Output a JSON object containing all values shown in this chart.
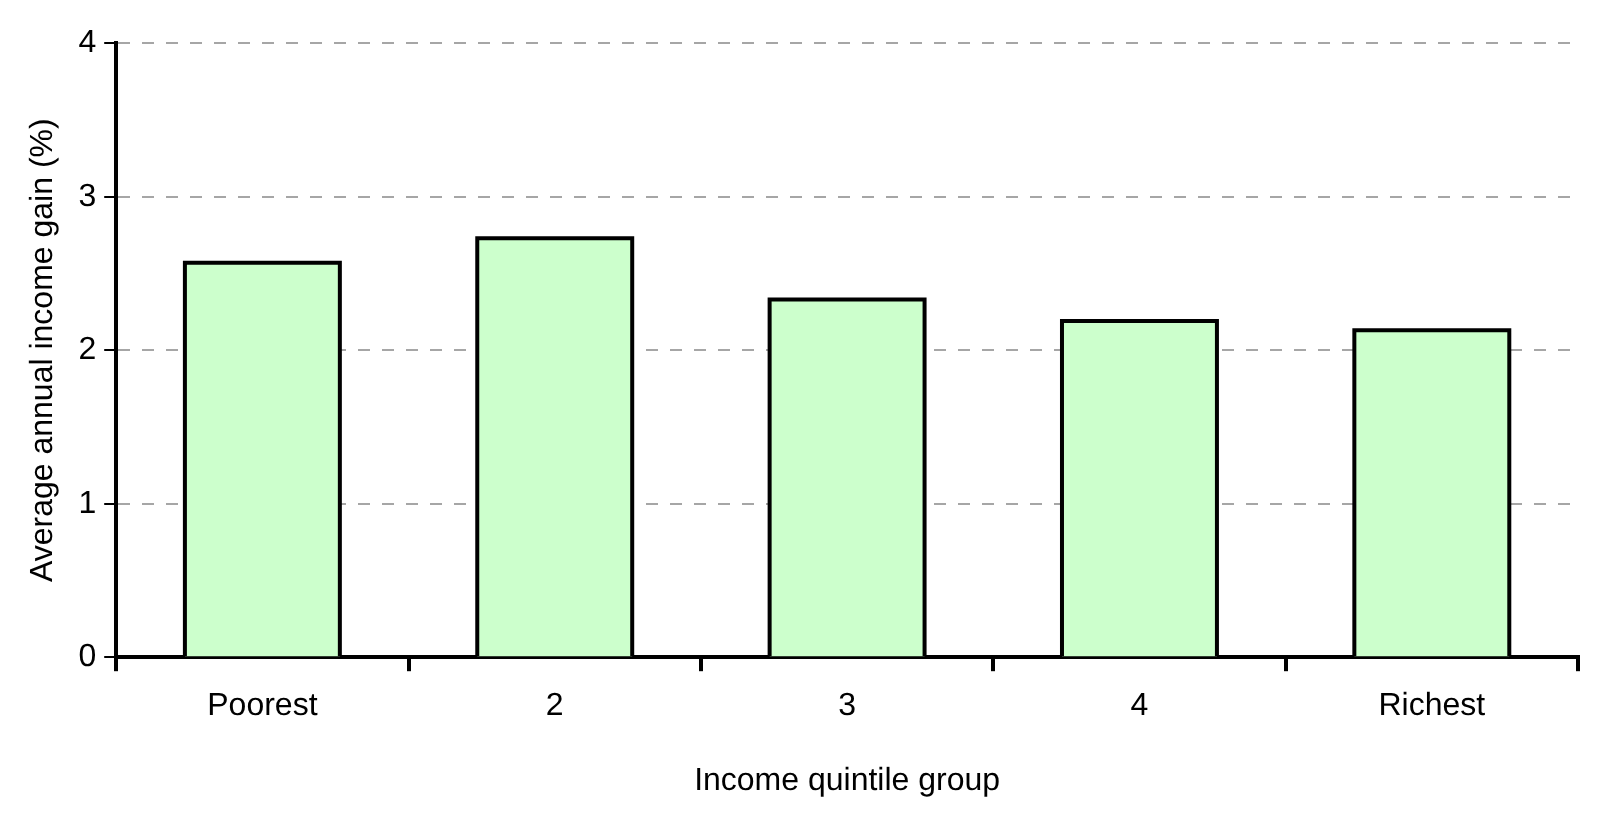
{
  "chart_data": {
    "type": "bar",
    "xlabel": "Income quintile group",
    "ylabel": "Average annual income gain (%)",
    "categories": [
      "Poorest",
      "2",
      "3",
      "4",
      "Richest"
    ],
    "values": [
      2.57,
      2.73,
      2.33,
      2.19,
      2.13
    ],
    "color": "#ccffcc",
    "ylim": [
      0,
      4
    ],
    "yticks": [
      0,
      1,
      2,
      3,
      4
    ],
    "grid": "y"
  }
}
